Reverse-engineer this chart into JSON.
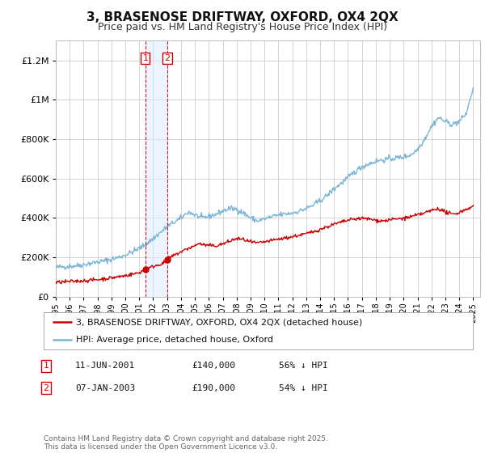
{
  "title": "3, BRASENOSE DRIFTWAY, OXFORD, OX4 2QX",
  "subtitle": "Price paid vs. HM Land Registry's House Price Index (HPI)",
  "ytick_values": [
    0,
    200000,
    400000,
    600000,
    800000,
    1000000,
    1200000
  ],
  "ylim": [
    0,
    1300000
  ],
  "xlim_start": 1995.0,
  "xlim_end": 2025.5,
  "hpi_color": "#7ab5d8",
  "price_color": "#cc0000",
  "sale1_date": 2001.44,
  "sale1_price": 140000,
  "sale2_date": 2003.02,
  "sale2_price": 190000,
  "legend_label_price": "3, BRASENOSE DRIFTWAY, OXFORD, OX4 2QX (detached house)",
  "legend_label_hpi": "HPI: Average price, detached house, Oxford",
  "table_rows": [
    {
      "num": "1",
      "date": "11-JUN-2001",
      "price": "£140,000",
      "pct": "56% ↓ HPI"
    },
    {
      "num": "2",
      "date": "07-JAN-2003",
      "price": "£190,000",
      "pct": "54% ↓ HPI"
    }
  ],
  "footnote": "Contains HM Land Registry data © Crown copyright and database right 2025.\nThis data is licensed under the Open Government Licence v3.0.",
  "bg_color": "#ffffff",
  "grid_color": "#cccccc",
  "xticks": [
    1995,
    1996,
    1997,
    1998,
    1999,
    2000,
    2001,
    2002,
    2003,
    2004,
    2005,
    2006,
    2007,
    2008,
    2009,
    2010,
    2011,
    2012,
    2013,
    2014,
    2015,
    2016,
    2017,
    2018,
    2019,
    2020,
    2021,
    2022,
    2023,
    2024,
    2025
  ],
  "hpi_anchors": [
    [
      1995.0,
      148000
    ],
    [
      1995.5,
      152000
    ],
    [
      1996.0,
      155000
    ],
    [
      1996.5,
      158000
    ],
    [
      1997.0,
      163000
    ],
    [
      1997.5,
      170000
    ],
    [
      1998.0,
      176000
    ],
    [
      1998.5,
      182000
    ],
    [
      1999.0,
      190000
    ],
    [
      1999.5,
      200000
    ],
    [
      2000.0,
      212000
    ],
    [
      2000.5,
      228000
    ],
    [
      2001.0,
      245000
    ],
    [
      2001.5,
      268000
    ],
    [
      2002.0,
      295000
    ],
    [
      2002.5,
      325000
    ],
    [
      2003.0,
      355000
    ],
    [
      2003.5,
      378000
    ],
    [
      2004.0,
      398000
    ],
    [
      2004.25,
      415000
    ],
    [
      2004.5,
      430000
    ],
    [
      2004.75,
      425000
    ],
    [
      2005.0,
      415000
    ],
    [
      2005.5,
      400000
    ],
    [
      2006.0,
      408000
    ],
    [
      2006.5,
      418000
    ],
    [
      2007.0,
      435000
    ],
    [
      2007.5,
      448000
    ],
    [
      2008.0,
      445000
    ],
    [
      2008.5,
      425000
    ],
    [
      2009.0,
      400000
    ],
    [
      2009.5,
      385000
    ],
    [
      2010.0,
      395000
    ],
    [
      2010.5,
      405000
    ],
    [
      2011.0,
      415000
    ],
    [
      2011.5,
      420000
    ],
    [
      2012.0,
      425000
    ],
    [
      2012.5,
      435000
    ],
    [
      2013.0,
      448000
    ],
    [
      2013.5,
      465000
    ],
    [
      2014.0,
      488000
    ],
    [
      2014.5,
      515000
    ],
    [
      2015.0,
      548000
    ],
    [
      2015.5,
      575000
    ],
    [
      2016.0,
      605000
    ],
    [
      2016.5,
      635000
    ],
    [
      2017.0,
      660000
    ],
    [
      2017.5,
      675000
    ],
    [
      2018.0,
      688000
    ],
    [
      2018.5,
      695000
    ],
    [
      2019.0,
      700000
    ],
    [
      2019.5,
      705000
    ],
    [
      2020.0,
      710000
    ],
    [
      2020.5,
      720000
    ],
    [
      2021.0,
      748000
    ],
    [
      2021.5,
      800000
    ],
    [
      2022.0,
      865000
    ],
    [
      2022.5,
      910000
    ],
    [
      2023.0,
      890000
    ],
    [
      2023.5,
      875000
    ],
    [
      2024.0,
      890000
    ],
    [
      2024.5,
      930000
    ],
    [
      2025.0,
      1060000
    ]
  ],
  "price_anchors": [
    [
      1995.0,
      72000
    ],
    [
      1995.5,
      75000
    ],
    [
      1996.0,
      77000
    ],
    [
      1996.5,
      79000
    ],
    [
      1997.0,
      81000
    ],
    [
      1997.5,
      84000
    ],
    [
      1998.0,
      87000
    ],
    [
      1998.5,
      91000
    ],
    [
      1999.0,
      96000
    ],
    [
      1999.5,
      101000
    ],
    [
      2000.0,
      107000
    ],
    [
      2000.5,
      114000
    ],
    [
      2001.0,
      122000
    ],
    [
      2001.44,
      140000
    ],
    [
      2001.8,
      148000
    ],
    [
      2002.0,
      154000
    ],
    [
      2002.5,
      165000
    ],
    [
      2003.0,
      178000
    ],
    [
      2003.02,
      190000
    ],
    [
      2003.5,
      210000
    ],
    [
      2004.0,
      228000
    ],
    [
      2004.5,
      245000
    ],
    [
      2005.0,
      258000
    ],
    [
      2005.25,
      272000
    ],
    [
      2005.5,
      265000
    ],
    [
      2006.0,
      260000
    ],
    [
      2006.5,
      258000
    ],
    [
      2007.0,
      268000
    ],
    [
      2007.5,
      282000
    ],
    [
      2008.0,
      295000
    ],
    [
      2008.5,
      290000
    ],
    [
      2009.0,
      278000
    ],
    [
      2009.5,
      272000
    ],
    [
      2010.0,
      278000
    ],
    [
      2010.5,
      285000
    ],
    [
      2011.0,
      292000
    ],
    [
      2011.5,
      298000
    ],
    [
      2012.0,
      305000
    ],
    [
      2012.5,
      312000
    ],
    [
      2013.0,
      320000
    ],
    [
      2013.5,
      330000
    ],
    [
      2014.0,
      342000
    ],
    [
      2014.5,
      355000
    ],
    [
      2015.0,
      368000
    ],
    [
      2015.5,
      378000
    ],
    [
      2016.0,
      388000
    ],
    [
      2016.5,
      395000
    ],
    [
      2017.0,
      398000
    ],
    [
      2017.5,
      395000
    ],
    [
      2018.0,
      388000
    ],
    [
      2018.5,
      385000
    ],
    [
      2019.0,
      390000
    ],
    [
      2019.5,
      395000
    ],
    [
      2020.0,
      398000
    ],
    [
      2020.5,
      405000
    ],
    [
      2021.0,
      415000
    ],
    [
      2021.5,
      425000
    ],
    [
      2022.0,
      438000
    ],
    [
      2022.5,
      448000
    ],
    [
      2023.0,
      430000
    ],
    [
      2023.5,
      418000
    ],
    [
      2024.0,
      428000
    ],
    [
      2024.5,
      445000
    ],
    [
      2025.0,
      458000
    ]
  ]
}
